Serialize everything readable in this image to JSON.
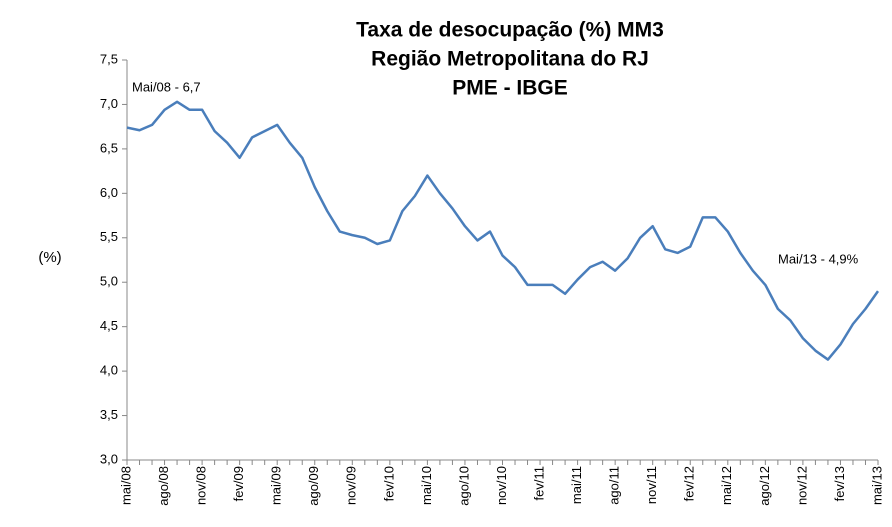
{
  "chart_data": {
    "type": "line",
    "title": [
      "Taxa de desocupação (%) MM3",
      "Região Metropolitana do RJ",
      "PME - IBGE"
    ],
    "y_label": "(%)",
    "annotations": [
      "Mai/08 - 6,7",
      "Mai/13 - 4,9%"
    ],
    "categories": [
      "mai/08",
      null,
      null,
      "ago/08",
      null,
      null,
      "nov/08",
      null,
      null,
      "fev/09",
      null,
      null,
      "mai/09",
      null,
      null,
      "ago/09",
      null,
      null,
      "nov/09",
      null,
      null,
      "fev/10",
      null,
      null,
      "mai/10",
      null,
      null,
      "ago/10",
      null,
      null,
      "nov/10",
      null,
      null,
      "fev/11",
      null,
      null,
      "mai/11",
      null,
      null,
      "ago/11",
      null,
      null,
      "nov/11",
      null,
      null,
      "fev/12",
      null,
      null,
      "mai/12",
      null,
      null,
      "ago/12",
      null,
      null,
      "nov/12",
      null,
      null,
      "fev/13",
      null,
      null,
      "mai/13"
    ],
    "values": [
      6.74,
      6.71,
      6.77,
      6.94,
      7.03,
      6.94,
      6.94,
      6.7,
      6.57,
      6.4,
      6.63,
      6.7,
      6.77,
      6.57,
      6.4,
      6.07,
      5.8,
      5.57,
      5.53,
      5.5,
      5.43,
      5.47,
      5.8,
      5.97,
      6.2,
      6.0,
      5.83,
      5.63,
      5.47,
      5.57,
      5.3,
      5.17,
      4.97,
      4.97,
      4.97,
      4.87,
      5.03,
      5.17,
      5.23,
      5.13,
      5.27,
      5.5,
      5.63,
      5.37,
      5.33,
      5.4,
      5.73,
      5.73,
      5.57,
      5.33,
      5.13,
      4.97,
      4.7,
      4.57,
      4.37,
      4.23,
      4.13,
      4.3,
      4.53,
      4.7,
      4.9
    ],
    "color": "#4a7ebb",
    "ylim": [
      3.0,
      7.5
    ],
    "yticks": [
      {
        "value": 3.0,
        "label": "3,0"
      },
      {
        "value": 3.5,
        "label": "3,5"
      },
      {
        "value": 4.0,
        "label": "4,0"
      },
      {
        "value": 4.5,
        "label": "4,5"
      },
      {
        "value": 5.0,
        "label": "5,0"
      },
      {
        "value": 5.5,
        "label": "5,5"
      },
      {
        "value": 6.0,
        "label": "6,0"
      },
      {
        "value": 6.5,
        "label": "6,5"
      },
      {
        "value": 7.0,
        "label": "7,0"
      },
      {
        "value": 7.5,
        "label": "7,5"
      }
    ],
    "grid": false
  }
}
